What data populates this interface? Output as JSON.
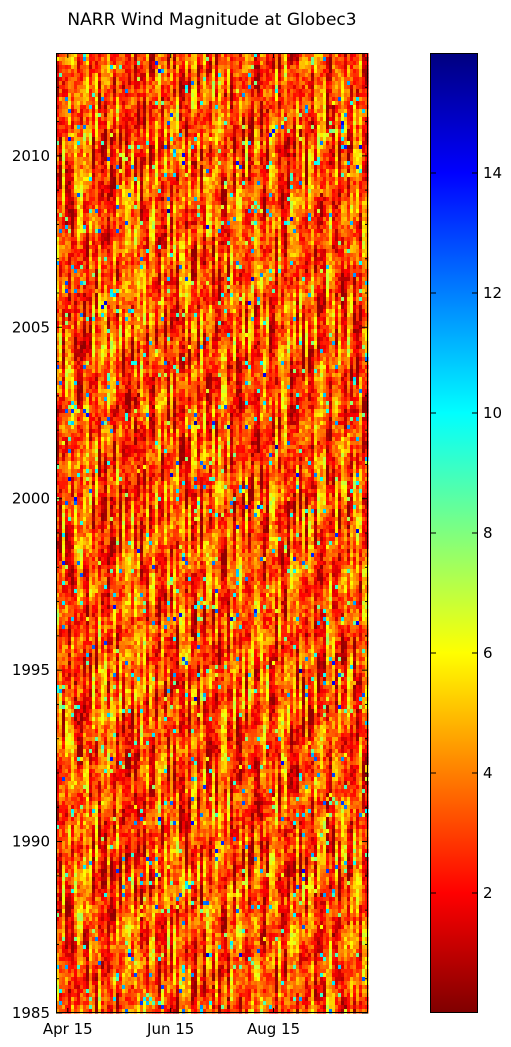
{
  "chart_data": {
    "type": "heatmap",
    "title": "NARR Wind Magnitude at Globec3",
    "xlabel": "",
    "ylabel": "",
    "x_tick_labels": [
      "Apr 15",
      "Jun 15",
      "Aug 15"
    ],
    "x_tick_days": [
      105,
      166,
      227
    ],
    "x_range_days": [
      98,
      283
    ],
    "y_tick_labels": [
      "1985",
      "1990",
      "1995",
      "2000",
      "2005",
      "2010"
    ],
    "y_tick_values": [
      1985,
      1990,
      1995,
      2000,
      2005,
      2010
    ],
    "y_range": [
      1985,
      2013
    ],
    "colorbar": {
      "tick_labels": [
        "2",
        "4",
        "6",
        "8",
        "10",
        "12",
        "14"
      ],
      "tick_values": [
        2,
        4,
        6,
        8,
        10,
        12,
        14
      ],
      "range": [
        0,
        16
      ],
      "colormap": "jet"
    },
    "colormap_stops": [
      "#7f0000",
      "#ff0000",
      "#ff7f00",
      "#ffff00",
      "#7fff7f",
      "#00ffff",
      "#007fff",
      "#0000ff",
      "#00007f"
    ],
    "field_summary": {
      "typical_range": [
        1,
        7
      ],
      "occasional_high": 12,
      "note_visible": "mostly red-orange-yellow with scattered green/cyan/blue streaks"
    }
  }
}
